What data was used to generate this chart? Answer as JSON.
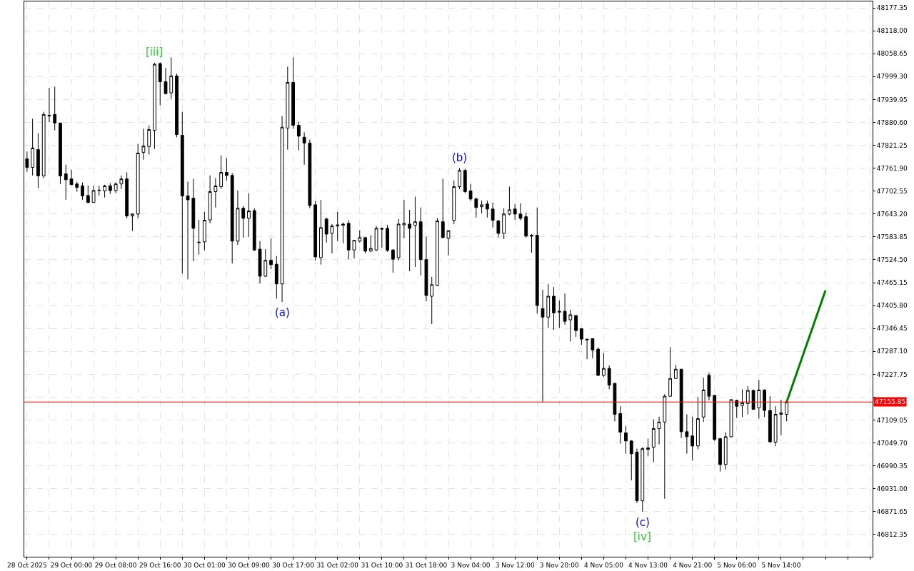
{
  "chart_data": {
    "type": "candlestick",
    "categories": [
      "28 Oct 2025",
      null,
      null,
      null,
      null,
      null,
      null,
      null,
      "29 Oct 00:00",
      null,
      null,
      null,
      null,
      null,
      null,
      null,
      "29 Oct 08:00",
      null,
      null,
      null,
      null,
      null,
      null,
      null,
      "29 Oct 16:00",
      null,
      null,
      null,
      null,
      null,
      null,
      null,
      "30 Oct 01:00",
      null,
      null,
      null,
      null,
      null,
      null,
      null,
      "30 Oct 09:00",
      null,
      null,
      null,
      null,
      null,
      null,
      null,
      "30 Oct 17:00",
      null,
      null,
      null,
      null,
      null,
      null,
      null,
      "31 Oct 02:00",
      null,
      null,
      null,
      null,
      null,
      null,
      null,
      "31 Oct 10:00",
      null,
      null,
      null,
      null,
      null,
      null,
      null,
      "31 Oct 18:00",
      null,
      null,
      null,
      null,
      null,
      null,
      null,
      "3 Nov 04:00",
      null,
      null,
      null,
      null,
      null,
      null,
      null,
      "3 Nov 12:00",
      null,
      null,
      null,
      null,
      null,
      null,
      null,
      "3 Nov 20:00",
      null,
      null,
      null,
      null,
      null,
      null,
      null,
      "4 Nov 05:00",
      null,
      null,
      null,
      null,
      null,
      null,
      null,
      "4 Nov 13:00",
      null,
      null,
      null,
      null,
      null,
      null,
      null,
      "4 Nov 21:00",
      null,
      null,
      null,
      null,
      null,
      null,
      null,
      "5 Nov 06:00",
      null,
      null,
      null,
      null,
      null,
      null,
      null,
      "5 Nov 14:00",
      null,
      null,
      null,
      null,
      null,
      null,
      null,
      null,
      null,
      null,
      null,
      null,
      null,
      null,
      null,
      null
    ],
    "ohlc": [
      [
        47786,
        47805,
        47753,
        47764
      ],
      [
        47764,
        47890,
        47743,
        47814
      ],
      [
        47810,
        47853,
        47710,
        47742
      ],
      [
        47742,
        47908,
        47736,
        47901
      ],
      [
        47899,
        47970,
        47881,
        47897
      ],
      [
        47901,
        47973,
        47860,
        47879
      ],
      [
        47879,
        47879,
        47721,
        47742
      ],
      [
        47747,
        47771,
        47680,
        47732
      ],
      [
        47734,
        47758,
        47719,
        47719
      ],
      [
        47721,
        47727,
        47701,
        47712
      ],
      [
        47716,
        47725,
        47680,
        47690
      ],
      [
        47691,
        47717,
        47671,
        47673
      ],
      [
        47673,
        47717,
        47672,
        47704
      ],
      [
        47704,
        47716,
        47691,
        47705
      ],
      [
        47703,
        47719,
        47686,
        47716
      ],
      [
        47716,
        47723,
        47695,
        47704
      ],
      [
        47704,
        47725,
        47697,
        47721
      ],
      [
        47721,
        47743,
        47708,
        47734
      ],
      [
        47734,
        47751,
        47632,
        47638
      ],
      [
        47638,
        47645,
        47599,
        47643
      ],
      [
        47643,
        47825,
        47632,
        47801
      ],
      [
        47803,
        47864,
        47784,
        47819
      ],
      [
        47818,
        47873,
        47797,
        47862
      ],
      [
        47860,
        48035,
        47812,
        48031
      ],
      [
        48033,
        48036,
        47925,
        47986
      ],
      [
        47986,
        48022,
        47953,
        47955
      ],
      [
        47957,
        48049,
        47942,
        48001
      ],
      [
        48001,
        48007,
        47842,
        47849
      ],
      [
        47847,
        47908,
        47489,
        47690
      ],
      [
        47690,
        47727,
        47474,
        47680
      ],
      [
        47684,
        47734,
        47521,
        47606
      ],
      [
        47569,
        47628,
        47538,
        47570
      ],
      [
        47571,
        47649,
        47549,
        47627
      ],
      [
        47628,
        47743,
        47619,
        47701
      ],
      [
        47701,
        47736,
        47660,
        47716
      ],
      [
        47714,
        47795,
        47708,
        47751
      ],
      [
        47751,
        47788,
        47730,
        47743
      ],
      [
        47743,
        47749,
        47515,
        47573
      ],
      [
        47573,
        47704,
        47563,
        47658
      ],
      [
        47658,
        47664,
        47582,
        47632
      ],
      [
        47632,
        47697,
        47584,
        47651
      ],
      [
        47652,
        47658,
        47547,
        47550
      ],
      [
        47552,
        47573,
        47463,
        47482
      ],
      [
        47482,
        47552,
        47480,
        47523
      ],
      [
        47523,
        47580,
        47500,
        47512
      ],
      [
        47513,
        47534,
        47424,
        47462
      ],
      [
        47462,
        47897,
        47415,
        47868
      ],
      [
        47866,
        48025,
        47810,
        47984
      ],
      [
        47984,
        48049,
        47864,
        47873
      ],
      [
        47873,
        47882,
        47808,
        47845
      ],
      [
        47842,
        47855,
        47771,
        47827
      ],
      [
        47827,
        47836,
        47658,
        47665
      ],
      [
        47667,
        47677,
        47523,
        47532
      ],
      [
        47530,
        47680,
        47512,
        47608
      ],
      [
        47630,
        47634,
        47569,
        47591
      ],
      [
        47593,
        47617,
        47541,
        47612
      ],
      [
        47612,
        47649,
        47573,
        47615
      ],
      [
        47614,
        47621,
        47567,
        47617
      ],
      [
        47619,
        47627,
        47526,
        47550
      ],
      [
        47550,
        47576,
        47528,
        47575
      ],
      [
        47573,
        47601,
        47569,
        47582
      ],
      [
        47582,
        47584,
        47541,
        47547
      ],
      [
        47547,
        47588,
        47545,
        47554
      ],
      [
        47550,
        47612,
        47547,
        47606
      ],
      [
        47606,
        47608,
        47556,
        47604
      ],
      [
        47606,
        47615,
        47545,
        47549
      ],
      [
        47550,
        47552,
        47491,
        47526
      ],
      [
        47530,
        47630,
        47523,
        47617
      ],
      [
        47615,
        47680,
        47580,
        47619
      ],
      [
        47617,
        47654,
        47495,
        47606
      ],
      [
        47614,
        47688,
        47506,
        47623
      ],
      [
        47623,
        47660,
        47484,
        47525
      ],
      [
        47525,
        47584,
        47417,
        47432
      ],
      [
        47430,
        47480,
        47358,
        47460
      ],
      [
        47458,
        47632,
        47456,
        47625
      ],
      [
        47623,
        47734,
        47580,
        47582
      ],
      [
        47580,
        47601,
        47536,
        47600
      ],
      [
        47627,
        47730,
        47617,
        47714
      ],
      [
        47714,
        47762,
        47708,
        47756
      ],
      [
        47756,
        47760,
        47697,
        47701
      ],
      [
        47703,
        47721,
        47677,
        47682
      ],
      [
        47682,
        47686,
        47634,
        47660
      ],
      [
        47662,
        47678,
        47645,
        47667
      ],
      [
        47669,
        47678,
        47634,
        47656
      ],
      [
        47656,
        47673,
        47608,
        47627
      ],
      [
        47625,
        47628,
        47582,
        47593
      ],
      [
        47593,
        47658,
        47578,
        47643
      ],
      [
        47643,
        47714,
        47640,
        47654
      ],
      [
        47656,
        47669,
        47628,
        47643
      ],
      [
        47643,
        47671,
        47627,
        47632
      ],
      [
        47636,
        47647,
        47582,
        47586
      ],
      [
        47588,
        47591,
        47543,
        47586
      ],
      [
        47588,
        47660,
        47385,
        47406
      ],
      [
        47398,
        47447,
        47155,
        47376
      ],
      [
        47376,
        47462,
        47348,
        47430
      ],
      [
        47430,
        47454,
        47343,
        47387
      ],
      [
        47391,
        47419,
        47348,
        47389
      ],
      [
        47391,
        47437,
        47356,
        47365
      ],
      [
        47369,
        47395,
        47313,
        47382
      ],
      [
        47380,
        47380,
        47324,
        47341
      ],
      [
        47346,
        47346,
        47304,
        47319
      ],
      [
        47319,
        47319,
        47267,
        47317
      ],
      [
        47320,
        47320,
        47269,
        47291
      ],
      [
        47293,
        47298,
        47223,
        47225
      ],
      [
        47225,
        47283,
        47221,
        47243
      ],
      [
        47243,
        47251,
        47189,
        47200
      ],
      [
        47204,
        47206,
        47106,
        47124
      ],
      [
        47126,
        47145,
        47048,
        47078
      ],
      [
        47076,
        47094,
        47022,
        47055
      ],
      [
        47055,
        47057,
        46953,
        47022
      ],
      [
        47026,
        47035,
        46894,
        46900
      ],
      [
        46900,
        47039,
        46872,
        47035
      ],
      [
        47033,
        47061,
        47015,
        47037
      ],
      [
        47039,
        47111,
        47000,
        47087
      ],
      [
        47087,
        47118,
        47046,
        47104
      ],
      [
        47104,
        47176,
        46905,
        47171
      ],
      [
        47171,
        47298,
        47170,
        47217
      ],
      [
        47217,
        47252,
        47216,
        47241
      ],
      [
        47241,
        47241,
        47063,
        47079
      ],
      [
        47079,
        47124,
        47022,
        47066
      ],
      [
        47068,
        47118,
        47004,
        47042
      ],
      [
        47042,
        47169,
        47033,
        47113
      ],
      [
        47117,
        47219,
        47104,
        47187
      ],
      [
        47225,
        47232,
        47160,
        47171
      ],
      [
        47173,
        47174,
        47055,
        47059
      ],
      [
        47061,
        47061,
        46976,
        46994
      ],
      [
        46994,
        47078,
        46981,
        47066
      ],
      [
        47066,
        47163,
        47065,
        47162
      ],
      [
        47160,
        47162,
        47115,
        47145
      ],
      [
        47147,
        47189,
        47117,
        47154
      ],
      [
        47152,
        47197,
        47124,
        47186
      ],
      [
        47186,
        47188,
        47136,
        47137
      ],
      [
        47141,
        47213,
        47113,
        47187
      ],
      [
        47187,
        47189,
        47117,
        47134
      ],
      [
        47134,
        47171,
        47050,
        47053
      ],
      [
        47052,
        47145,
        47042,
        47124
      ],
      [
        47124,
        47162,
        47070,
        47128
      ],
      [
        47124,
        47156,
        47106,
        47155.85
      ],
      null,
      null,
      null,
      null,
      null,
      null,
      null,
      null,
      null,
      null,
      null,
      null,
      null,
      null,
      null
    ],
    "series": [
      {
        "type": "line",
        "color": "#008000",
        "values": [
          null,
          null,
          null,
          null,
          null,
          null,
          null,
          null,
          null,
          null,
          null,
          null,
          null,
          null,
          null,
          null,
          null,
          null,
          null,
          null,
          null,
          null,
          null,
          null,
          null,
          null,
          null,
          null,
          null,
          null,
          null,
          null,
          null,
          null,
          null,
          null,
          null,
          null,
          null,
          null,
          null,
          null,
          null,
          null,
          null,
          null,
          null,
          null,
          null,
          null,
          null,
          null,
          null,
          null,
          null,
          null,
          null,
          null,
          null,
          null,
          null,
          null,
          null,
          null,
          null,
          null,
          null,
          null,
          null,
          null,
          null,
          null,
          null,
          null,
          null,
          null,
          null,
          null,
          null,
          null,
          null,
          null,
          null,
          null,
          null,
          null,
          null,
          null,
          null,
          null,
          null,
          null,
          null,
          null,
          null,
          null,
          null,
          null,
          null,
          null,
          null,
          null,
          null,
          null,
          null,
          null,
          null,
          null,
          null,
          null,
          null,
          null,
          null,
          null,
          null,
          null,
          null,
          null,
          null,
          null,
          null,
          null,
          null,
          null,
          null,
          null,
          null,
          null,
          null,
          null,
          null,
          null,
          null,
          null,
          null,
          null,
          null,
          47155.85,
          null,
          null,
          null,
          null,
          null,
          null,
          47445,
          null,
          null,
          null,
          null,
          null,
          null,
          null,
          null
        ]
      }
    ],
    "ylim": [
      46755,
      48194
    ],
    "yticks": [
      46812.35,
      46871.65,
      {
        "value": 46931,
        "label": "46931.00"
      },
      46990.35,
      {
        "value": 47049.7,
        "label": "47049.70"
      },
      47109.05,
      {
        "value": 47168.4,
        "label": null
      },
      47227.75,
      {
        "value": 47287.1,
        "label": "47287.10"
      },
      47346.45,
      {
        "value": 47405.8,
        "label": "47405.80"
      },
      47465.15,
      {
        "value": 47524.5,
        "label": "47524.50"
      },
      47583.85,
      {
        "value": 47643.2,
        "label": "47643.20"
      },
      47702.55,
      {
        "value": 47761.9,
        "label": "47761.90"
      },
      47821.25,
      {
        "value": 47880.6,
        "label": "47880.60"
      },
      47939.95,
      {
        "value": 47999.3,
        "label": "47999.30"
      },
      48058.65,
      {
        "value": 48118,
        "label": "48118.00"
      },
      48177.35
    ],
    "ref_lines": [
      {
        "axis": "y",
        "value": 47155.85,
        "label": "47155.85",
        "color": "#ff0000"
      }
    ],
    "annotations": [
      {
        "text": "[iii]",
        "y": 48035
      },
      {
        "text": "(a)",
        "y": 47415
      },
      {
        "text": "(b)",
        "y": 47762
      },
      {
        "text": "(c)",
        "y": 46872
      },
      {
        "text": "[iv]",
        "y": 46872
      }
    ],
    "grid": true
  }
}
